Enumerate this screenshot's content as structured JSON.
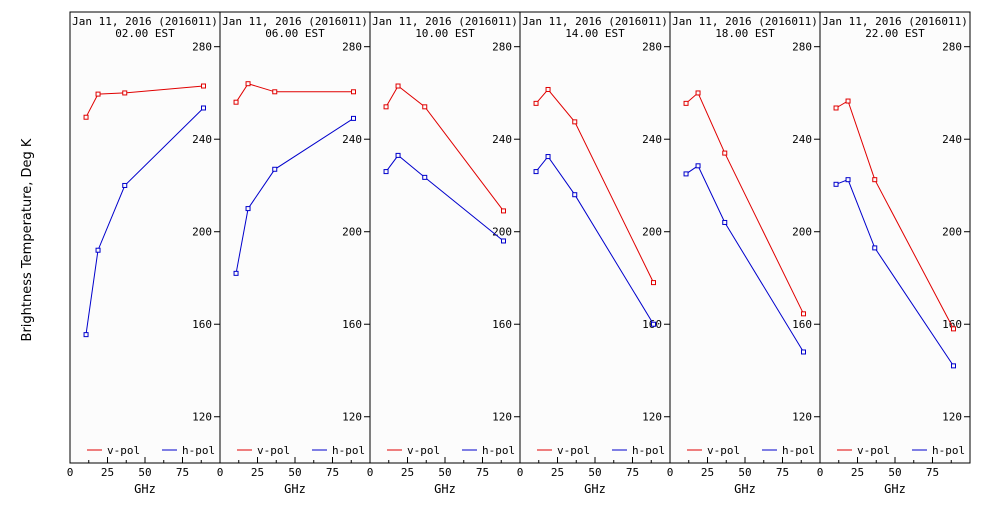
{
  "y_axis_label": "Brightness Temperature, Deg K",
  "colors": {
    "v_pol": "#e00000",
    "h_pol": "#0000cc",
    "frame": "#000000",
    "background": "#fcfcfc"
  },
  "chart_data": [
    {
      "type": "line",
      "title": "Jan 11, 2016 (2016011)",
      "subtitle": "02.00 EST",
      "xlabel": "GHz",
      "xlim": [
        0,
        100
      ],
      "ylim": [
        100,
        295
      ],
      "xticks": [
        "0",
        "25",
        "50",
        "75"
      ],
      "yticks": [
        "120",
        "160",
        "200",
        "240",
        "280"
      ],
      "legend": "bottom",
      "x": [
        10.7,
        18.7,
        36.5,
        89
      ],
      "series": [
        {
          "name": "v-pol",
          "values": [
            249.5,
            259.5,
            260,
            263
          ]
        },
        {
          "name": "h-pol",
          "values": [
            155.5,
            192,
            220,
            253.5
          ]
        }
      ]
    },
    {
      "type": "line",
      "title": "Jan 11, 2016 (2016011)",
      "subtitle": "06.00 EST",
      "xlabel": "GHz",
      "xlim": [
        0,
        100
      ],
      "ylim": [
        100,
        295
      ],
      "xticks": [
        "0",
        "25",
        "50",
        "75"
      ],
      "yticks": [
        "120",
        "160",
        "200",
        "240",
        "280"
      ],
      "legend": "bottom",
      "x": [
        10.7,
        18.7,
        36.5,
        89
      ],
      "series": [
        {
          "name": "v-pol",
          "values": [
            256,
            264,
            260.5,
            260.5
          ]
        },
        {
          "name": "h-pol",
          "values": [
            182,
            210,
            227,
            249
          ]
        }
      ]
    },
    {
      "type": "line",
      "title": "Jan 11, 2016 (2016011)",
      "subtitle": "10.00 EST",
      "xlabel": "GHz",
      "xlim": [
        0,
        100
      ],
      "ylim": [
        100,
        295
      ],
      "xticks": [
        "0",
        "25",
        "50",
        "75"
      ],
      "yticks": [
        "120",
        "160",
        "200",
        "240",
        "280"
      ],
      "legend": "bottom",
      "x": [
        10.7,
        18.7,
        36.5,
        89
      ],
      "series": [
        {
          "name": "v-pol",
          "values": [
            254,
            263,
            254,
            209
          ]
        },
        {
          "name": "h-pol",
          "values": [
            226,
            233,
            223.5,
            196
          ]
        }
      ]
    },
    {
      "type": "line",
      "title": "Jan 11, 2016 (2016011)",
      "subtitle": "14.00 EST",
      "xlabel": "GHz",
      "xlim": [
        0,
        100
      ],
      "ylim": [
        100,
        295
      ],
      "xticks": [
        "0",
        "25",
        "50",
        "75"
      ],
      "yticks": [
        "120",
        "160",
        "200",
        "240",
        "280"
      ],
      "legend": "bottom",
      "x": [
        10.7,
        18.7,
        36.5,
        89
      ],
      "series": [
        {
          "name": "v-pol",
          "values": [
            255.5,
            261.5,
            247.5,
            178
          ]
        },
        {
          "name": "h-pol",
          "values": [
            226,
            232.5,
            216,
            160
          ]
        }
      ]
    },
    {
      "type": "line",
      "title": "Jan 11, 2016 (2016011)",
      "subtitle": "18.00 EST",
      "xlabel": "GHz",
      "xlim": [
        0,
        100
      ],
      "ylim": [
        100,
        295
      ],
      "xticks": [
        "0",
        "25",
        "50",
        "75"
      ],
      "yticks": [
        "120",
        "160",
        "200",
        "240",
        "280"
      ],
      "legend": "bottom",
      "x": [
        10.7,
        18.7,
        36.5,
        89
      ],
      "series": [
        {
          "name": "v-pol",
          "values": [
            255.5,
            260,
            234,
            164.5
          ]
        },
        {
          "name": "h-pol",
          "values": [
            225,
            228.5,
            204,
            148
          ]
        }
      ]
    },
    {
      "type": "line",
      "title": "Jan 11, 2016 (2016011)",
      "subtitle": "22.00 EST",
      "xlabel": "GHz",
      "xlim": [
        0,
        100
      ],
      "ylim": [
        100,
        295
      ],
      "xticks": [
        "0",
        "25",
        "50",
        "75"
      ],
      "yticks": [
        "120",
        "160",
        "200",
        "240",
        "280"
      ],
      "legend": "bottom",
      "x": [
        10.7,
        18.7,
        36.5,
        89
      ],
      "series": [
        {
          "name": "v-pol",
          "values": [
            253.5,
            256.5,
            222.5,
            158
          ]
        },
        {
          "name": "h-pol",
          "values": [
            220.5,
            222.5,
            193,
            142
          ]
        }
      ]
    }
  ]
}
